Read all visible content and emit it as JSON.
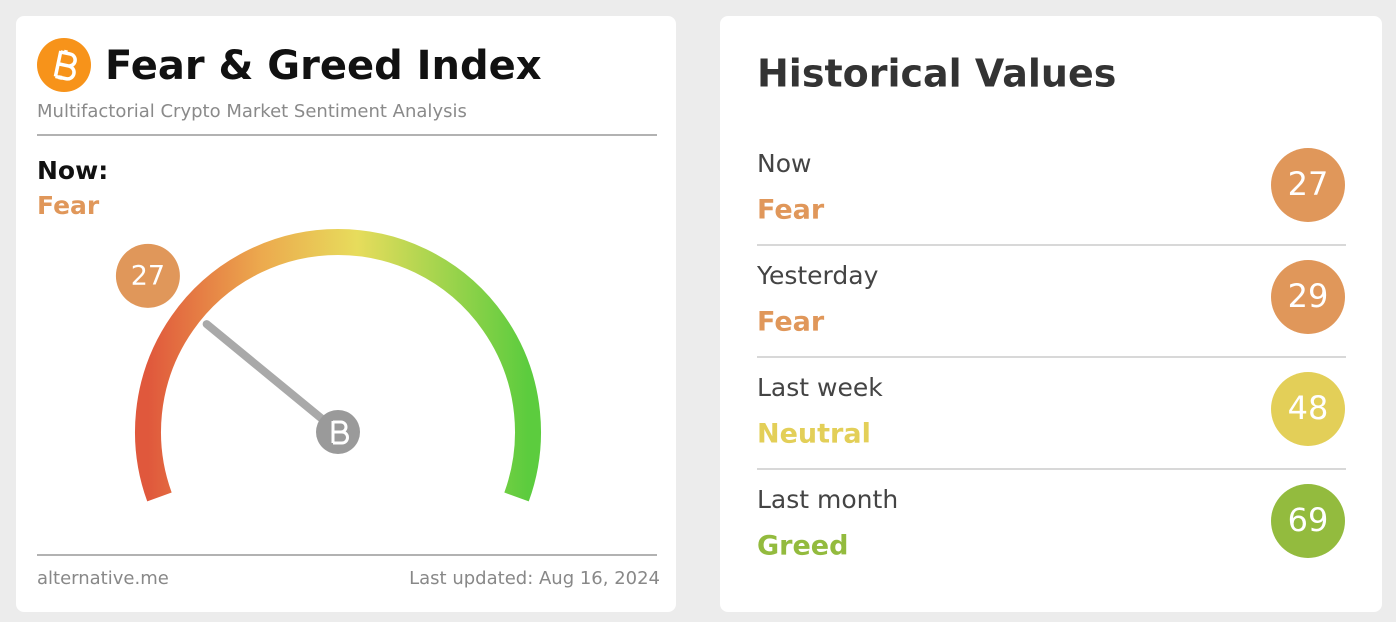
{
  "index_card": {
    "title": "Fear & Greed Index",
    "subtitle": "Multifactorial Crypto Market Sentiment Analysis",
    "now_label": "Now:",
    "classification": "Fear",
    "classification_color": "#e0975a",
    "gauge": {
      "value": 27,
      "range": [
        0,
        100
      ]
    },
    "footer_left": "alternative.me",
    "footer_right": "Last updated: Aug 16, 2024"
  },
  "historical": {
    "title": "Historical Values",
    "rows": [
      {
        "label": "Now",
        "classification": "Fear",
        "value": 27,
        "color": "#e0975a"
      },
      {
        "label": "Yesterday",
        "classification": "Fear",
        "value": 29,
        "color": "#e0975a"
      },
      {
        "label": "Last week",
        "classification": "Neutral",
        "value": 48,
        "color": "#e3cf58"
      },
      {
        "label": "Last month",
        "classification": "Greed",
        "value": 69,
        "color": "#93bb3e"
      }
    ]
  }
}
